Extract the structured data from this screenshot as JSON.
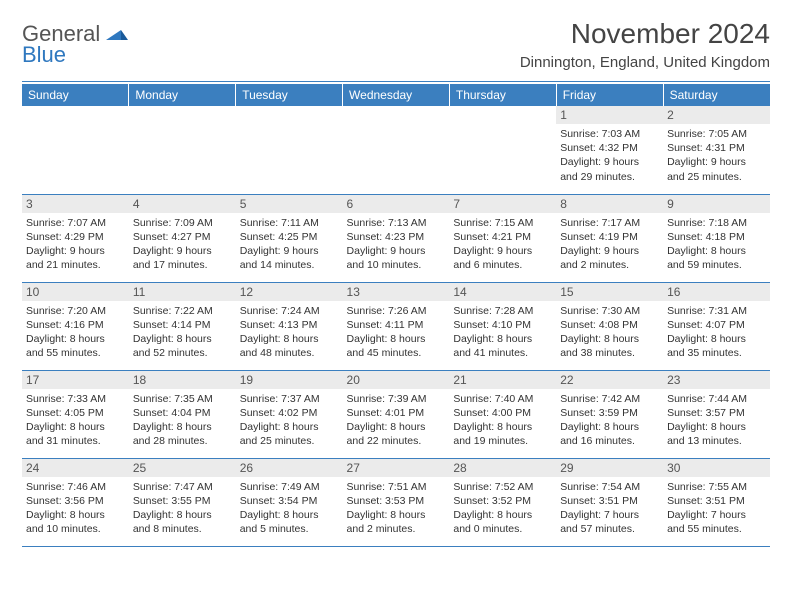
{
  "logo": {
    "line1": "General",
    "line2": "Blue"
  },
  "header": {
    "month_title": "November 2024",
    "location": "Dinnington, England, United Kingdom"
  },
  "colors": {
    "header_bg": "#3b7fbf",
    "daynum_bg": "#ebebeb",
    "rule": "#3b7fbf"
  },
  "day_names": [
    "Sunday",
    "Monday",
    "Tuesday",
    "Wednesday",
    "Thursday",
    "Friday",
    "Saturday"
  ],
  "weeks": [
    [
      null,
      null,
      null,
      null,
      null,
      {
        "n": "1",
        "sunrise": "Sunrise: 7:03 AM",
        "sunset": "Sunset: 4:32 PM",
        "dl1": "Daylight: 9 hours",
        "dl2": "and 29 minutes."
      },
      {
        "n": "2",
        "sunrise": "Sunrise: 7:05 AM",
        "sunset": "Sunset: 4:31 PM",
        "dl1": "Daylight: 9 hours",
        "dl2": "and 25 minutes."
      }
    ],
    [
      {
        "n": "3",
        "sunrise": "Sunrise: 7:07 AM",
        "sunset": "Sunset: 4:29 PM",
        "dl1": "Daylight: 9 hours",
        "dl2": "and 21 minutes."
      },
      {
        "n": "4",
        "sunrise": "Sunrise: 7:09 AM",
        "sunset": "Sunset: 4:27 PM",
        "dl1": "Daylight: 9 hours",
        "dl2": "and 17 minutes."
      },
      {
        "n": "5",
        "sunrise": "Sunrise: 7:11 AM",
        "sunset": "Sunset: 4:25 PM",
        "dl1": "Daylight: 9 hours",
        "dl2": "and 14 minutes."
      },
      {
        "n": "6",
        "sunrise": "Sunrise: 7:13 AM",
        "sunset": "Sunset: 4:23 PM",
        "dl1": "Daylight: 9 hours",
        "dl2": "and 10 minutes."
      },
      {
        "n": "7",
        "sunrise": "Sunrise: 7:15 AM",
        "sunset": "Sunset: 4:21 PM",
        "dl1": "Daylight: 9 hours",
        "dl2": "and 6 minutes."
      },
      {
        "n": "8",
        "sunrise": "Sunrise: 7:17 AM",
        "sunset": "Sunset: 4:19 PM",
        "dl1": "Daylight: 9 hours",
        "dl2": "and 2 minutes."
      },
      {
        "n": "9",
        "sunrise": "Sunrise: 7:18 AM",
        "sunset": "Sunset: 4:18 PM",
        "dl1": "Daylight: 8 hours",
        "dl2": "and 59 minutes."
      }
    ],
    [
      {
        "n": "10",
        "sunrise": "Sunrise: 7:20 AM",
        "sunset": "Sunset: 4:16 PM",
        "dl1": "Daylight: 8 hours",
        "dl2": "and 55 minutes."
      },
      {
        "n": "11",
        "sunrise": "Sunrise: 7:22 AM",
        "sunset": "Sunset: 4:14 PM",
        "dl1": "Daylight: 8 hours",
        "dl2": "and 52 minutes."
      },
      {
        "n": "12",
        "sunrise": "Sunrise: 7:24 AM",
        "sunset": "Sunset: 4:13 PM",
        "dl1": "Daylight: 8 hours",
        "dl2": "and 48 minutes."
      },
      {
        "n": "13",
        "sunrise": "Sunrise: 7:26 AM",
        "sunset": "Sunset: 4:11 PM",
        "dl1": "Daylight: 8 hours",
        "dl2": "and 45 minutes."
      },
      {
        "n": "14",
        "sunrise": "Sunrise: 7:28 AM",
        "sunset": "Sunset: 4:10 PM",
        "dl1": "Daylight: 8 hours",
        "dl2": "and 41 minutes."
      },
      {
        "n": "15",
        "sunrise": "Sunrise: 7:30 AM",
        "sunset": "Sunset: 4:08 PM",
        "dl1": "Daylight: 8 hours",
        "dl2": "and 38 minutes."
      },
      {
        "n": "16",
        "sunrise": "Sunrise: 7:31 AM",
        "sunset": "Sunset: 4:07 PM",
        "dl1": "Daylight: 8 hours",
        "dl2": "and 35 minutes."
      }
    ],
    [
      {
        "n": "17",
        "sunrise": "Sunrise: 7:33 AM",
        "sunset": "Sunset: 4:05 PM",
        "dl1": "Daylight: 8 hours",
        "dl2": "and 31 minutes."
      },
      {
        "n": "18",
        "sunrise": "Sunrise: 7:35 AM",
        "sunset": "Sunset: 4:04 PM",
        "dl1": "Daylight: 8 hours",
        "dl2": "and 28 minutes."
      },
      {
        "n": "19",
        "sunrise": "Sunrise: 7:37 AM",
        "sunset": "Sunset: 4:02 PM",
        "dl1": "Daylight: 8 hours",
        "dl2": "and 25 minutes."
      },
      {
        "n": "20",
        "sunrise": "Sunrise: 7:39 AM",
        "sunset": "Sunset: 4:01 PM",
        "dl1": "Daylight: 8 hours",
        "dl2": "and 22 minutes."
      },
      {
        "n": "21",
        "sunrise": "Sunrise: 7:40 AM",
        "sunset": "Sunset: 4:00 PM",
        "dl1": "Daylight: 8 hours",
        "dl2": "and 19 minutes."
      },
      {
        "n": "22",
        "sunrise": "Sunrise: 7:42 AM",
        "sunset": "Sunset: 3:59 PM",
        "dl1": "Daylight: 8 hours",
        "dl2": "and 16 minutes."
      },
      {
        "n": "23",
        "sunrise": "Sunrise: 7:44 AM",
        "sunset": "Sunset: 3:57 PM",
        "dl1": "Daylight: 8 hours",
        "dl2": "and 13 minutes."
      }
    ],
    [
      {
        "n": "24",
        "sunrise": "Sunrise: 7:46 AM",
        "sunset": "Sunset: 3:56 PM",
        "dl1": "Daylight: 8 hours",
        "dl2": "and 10 minutes."
      },
      {
        "n": "25",
        "sunrise": "Sunrise: 7:47 AM",
        "sunset": "Sunset: 3:55 PM",
        "dl1": "Daylight: 8 hours",
        "dl2": "and 8 minutes."
      },
      {
        "n": "26",
        "sunrise": "Sunrise: 7:49 AM",
        "sunset": "Sunset: 3:54 PM",
        "dl1": "Daylight: 8 hours",
        "dl2": "and 5 minutes."
      },
      {
        "n": "27",
        "sunrise": "Sunrise: 7:51 AM",
        "sunset": "Sunset: 3:53 PM",
        "dl1": "Daylight: 8 hours",
        "dl2": "and 2 minutes."
      },
      {
        "n": "28",
        "sunrise": "Sunrise: 7:52 AM",
        "sunset": "Sunset: 3:52 PM",
        "dl1": "Daylight: 8 hours",
        "dl2": "and 0 minutes."
      },
      {
        "n": "29",
        "sunrise": "Sunrise: 7:54 AM",
        "sunset": "Sunset: 3:51 PM",
        "dl1": "Daylight: 7 hours",
        "dl2": "and 57 minutes."
      },
      {
        "n": "30",
        "sunrise": "Sunrise: 7:55 AM",
        "sunset": "Sunset: 3:51 PM",
        "dl1": "Daylight: 7 hours",
        "dl2": "and 55 minutes."
      }
    ]
  ]
}
